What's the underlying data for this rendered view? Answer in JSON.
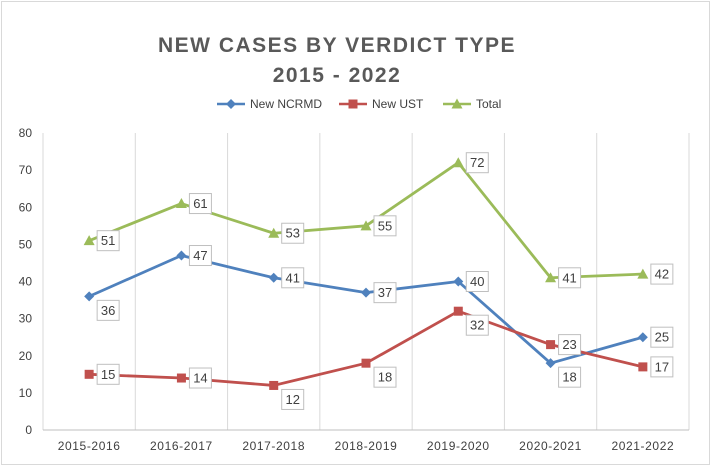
{
  "chart_data": {
    "type": "line",
    "title": "NEW CASES BY VERDICT TYPE",
    "subtitle": "2015 - 2022",
    "categories": [
      "2015-2016",
      "2016-2017",
      "2017-2018",
      "2018-2019",
      "2019-2020",
      "2020-2021",
      "2021-2022"
    ],
    "ylim": [
      0,
      80
    ],
    "yticks": [
      0,
      10,
      20,
      30,
      40,
      50,
      60,
      70,
      80
    ],
    "grid": "vertical",
    "legend": "top",
    "series": [
      {
        "name": "New NCRMD",
        "color": "#4f81bd",
        "marker": "diamond",
        "values": [
          36,
          47,
          41,
          37,
          40,
          18,
          25
        ]
      },
      {
        "name": "New UST",
        "color": "#c0504d",
        "marker": "square",
        "values": [
          15,
          14,
          12,
          18,
          32,
          23,
          17
        ]
      },
      {
        "name": "Total",
        "color": "#9bbb59",
        "marker": "triangle",
        "values": [
          51,
          61,
          53,
          55,
          72,
          41,
          42
        ]
      }
    ]
  }
}
